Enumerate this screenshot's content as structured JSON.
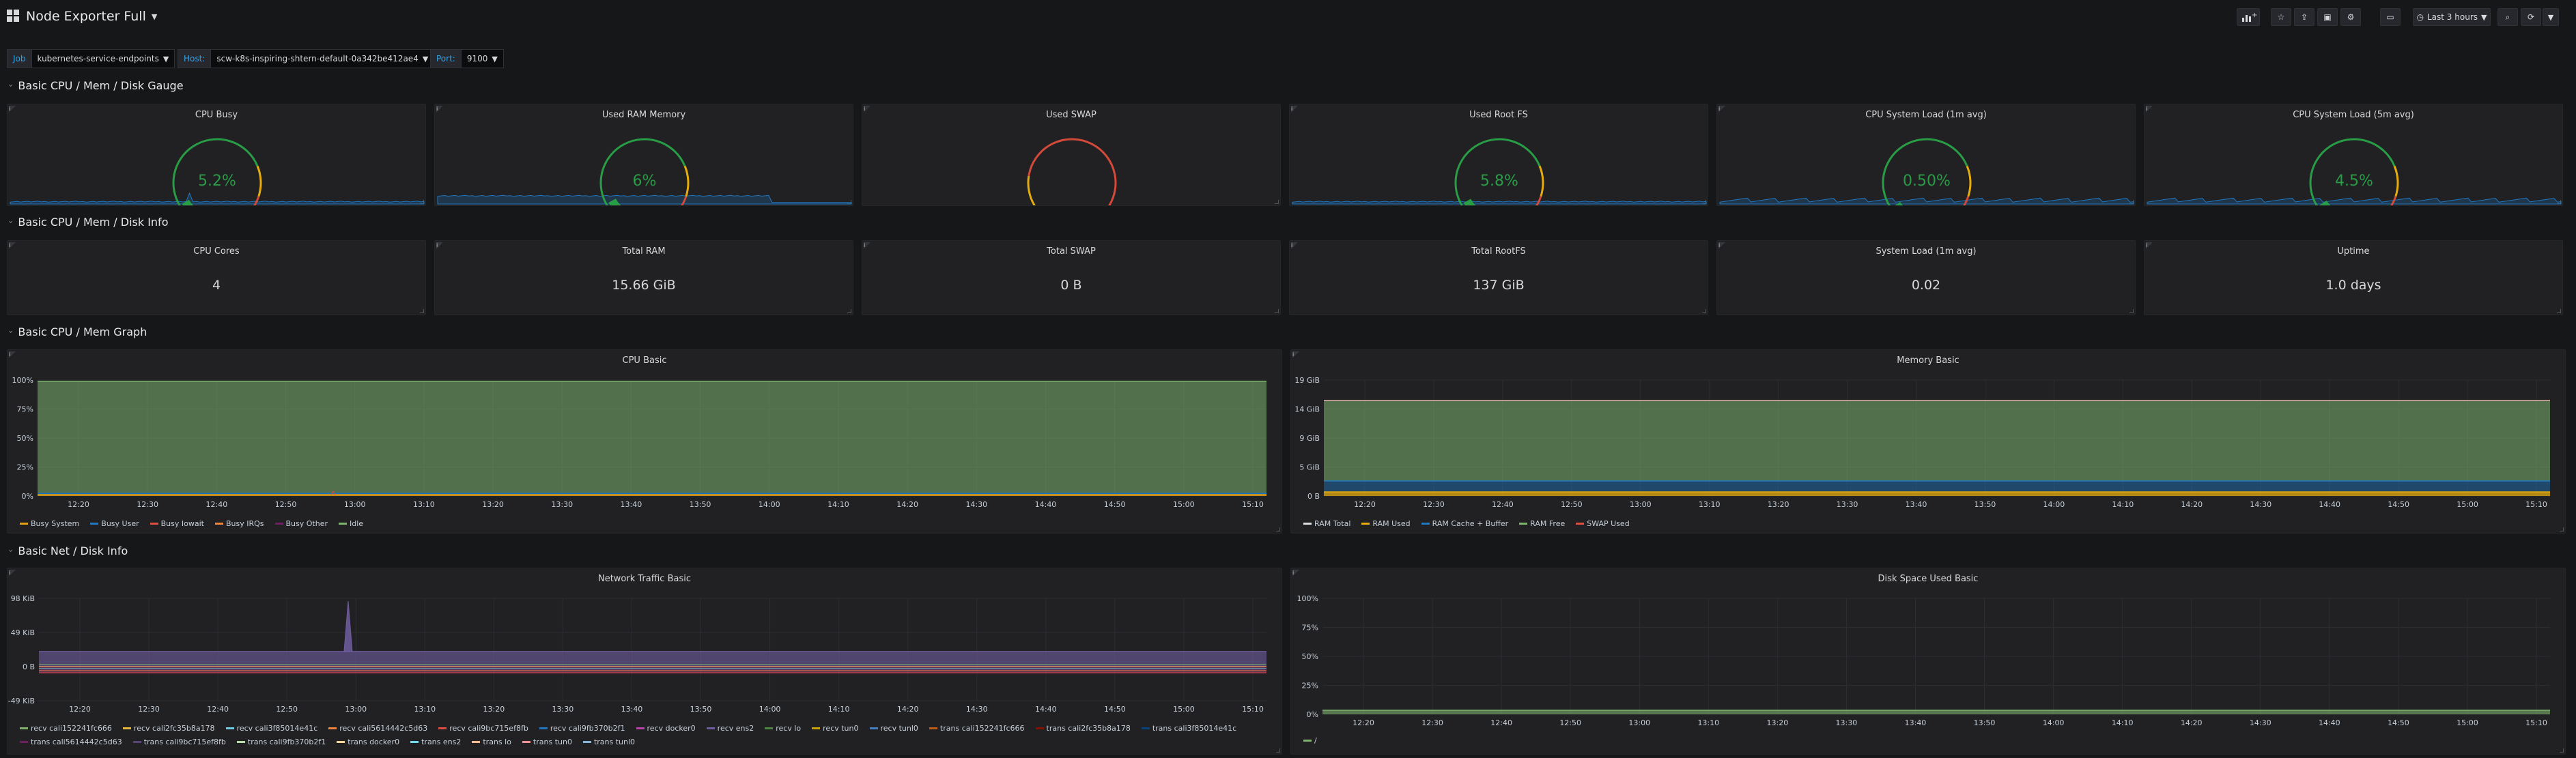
{
  "dashboard": {
    "title": "Node Exporter Full"
  },
  "toolbar": {
    "time_range": "Last 3 hours"
  },
  "colors": {
    "green": "#299c46",
    "yellow": "#e5ac0e",
    "red": "#d44a3a",
    "blue": "#1f78c1",
    "bg": "#161719",
    "panel": "#212124"
  },
  "variables": [
    {
      "label": "Job",
      "value": "kubernetes-service-endpoints"
    },
    {
      "label": "Host:",
      "value": "scw-k8s-inspiring-shtern-default-0a342be412ae4"
    },
    {
      "label": "Port:",
      "value": "9100"
    }
  ],
  "rows": [
    "Basic CPU / Mem / Disk Gauge",
    "Basic CPU / Mem / Disk Info",
    "Basic CPU / Mem Graph",
    "Basic Net / Disk Info"
  ],
  "gauges": [
    {
      "title": "CPU Busy",
      "value": "5.2%",
      "level": 0.052
    },
    {
      "title": "Used RAM Memory",
      "value": "6%",
      "level": 0.06
    },
    {
      "title": "Used SWAP",
      "value": "",
      "level": 0
    },
    {
      "title": "Used Root FS",
      "value": "5.8%",
      "level": 0.058
    },
    {
      "title": "CPU System Load (1m avg)",
      "value": "0.50%",
      "level": 0.005
    },
    {
      "title": "CPU System Load (5m avg)",
      "value": "4.5%",
      "level": 0.045
    }
  ],
  "stats": [
    {
      "title": "CPU Cores",
      "value": "4"
    },
    {
      "title": "Total RAM",
      "value": "15.66 GiB"
    },
    {
      "title": "Total SWAP",
      "value": "0 B"
    },
    {
      "title": "Total RootFS",
      "value": "137 GiB"
    },
    {
      "title": "System Load (1m avg)",
      "value": "0.02"
    },
    {
      "title": "Uptime",
      "value": "1.0 days"
    }
  ],
  "graphs": [
    {
      "title": "CPU Basic",
      "yticks": [
        "100%",
        "75%",
        "50%",
        "25%",
        "0%"
      ],
      "xticks": [
        "12:20",
        "12:30",
        "12:40",
        "12:50",
        "13:00",
        "13:10",
        "13:20",
        "13:30",
        "13:40",
        "13:50",
        "14:00",
        "14:10",
        "14:20",
        "14:30",
        "14:40",
        "14:50",
        "15:00",
        "15:10"
      ],
      "legend": [
        {
          "name": "Busy System",
          "color": "#e5a00e"
        },
        {
          "name": "Busy User",
          "color": "#1f78c1"
        },
        {
          "name": "Busy Iowait",
          "color": "#e24d42"
        },
        {
          "name": "Busy IRQs",
          "color": "#ef843c"
        },
        {
          "name": "Busy Other",
          "color": "#6d1f62"
        },
        {
          "name": "Idle",
          "color": "#7eb26d"
        }
      ]
    },
    {
      "title": "Memory Basic",
      "yticks": [
        "19 GiB",
        "14 GiB",
        "9 GiB",
        "5 GiB",
        "0 B"
      ],
      "xticks": [
        "12:20",
        "12:30",
        "12:40",
        "12:50",
        "13:00",
        "13:10",
        "13:20",
        "13:30",
        "13:40",
        "13:50",
        "14:00",
        "14:10",
        "14:20",
        "14:30",
        "14:40",
        "14:50",
        "15:00",
        "15:10"
      ],
      "legend": [
        {
          "name": "RAM Total",
          "color": "#dddddd"
        },
        {
          "name": "RAM Used",
          "color": "#e5ac0e"
        },
        {
          "name": "RAM Cache + Buffer",
          "color": "#1f78c1"
        },
        {
          "name": "RAM Free",
          "color": "#7eb26d"
        },
        {
          "name": "SWAP Used",
          "color": "#e24d42"
        }
      ]
    },
    {
      "title": "Network Traffic Basic",
      "yticks": [
        "98 KiB",
        "49 KiB",
        "0 B",
        "-49 KiB"
      ],
      "xticks": [
        "12:20",
        "12:30",
        "12:40",
        "12:50",
        "13:00",
        "13:10",
        "13:20",
        "13:30",
        "13:40",
        "13:50",
        "14:00",
        "14:10",
        "14:20",
        "14:30",
        "14:40",
        "14:50",
        "15:00",
        "15:10"
      ],
      "legend": [
        {
          "name": "recv cali152241fc666",
          "color": "#7eb26d"
        },
        {
          "name": "recv cali2fc35b8a178",
          "color": "#eab839"
        },
        {
          "name": "recv cali3f85014e41c",
          "color": "#6ed0e0"
        },
        {
          "name": "recv cali5614442c5d63",
          "color": "#ef843c"
        },
        {
          "name": "recv cali9bc715ef8fb",
          "color": "#e24d42"
        },
        {
          "name": "recv cali9fb370b2f1",
          "color": "#1f78c1"
        },
        {
          "name": "recv docker0",
          "color": "#ba43a9"
        },
        {
          "name": "recv ens2",
          "color": "#705da0"
        },
        {
          "name": "recv lo",
          "color": "#508642"
        },
        {
          "name": "recv tun0",
          "color": "#cca300"
        },
        {
          "name": "recv tunl0",
          "color": "#447ebc"
        },
        {
          "name": "trans cali152241fc666",
          "color": "#c15c17"
        },
        {
          "name": "trans cali2fc35b8a178",
          "color": "#890f02"
        },
        {
          "name": "trans cali3f85014e41c",
          "color": "#0a437c"
        },
        {
          "name": "trans cali5614442c5d63",
          "color": "#6d1f62"
        },
        {
          "name": "trans cali9bc715ef8fb",
          "color": "#584477"
        },
        {
          "name": "trans cali9fb370b2f1",
          "color": "#b7dbab"
        },
        {
          "name": "trans docker0",
          "color": "#f4d598"
        },
        {
          "name": "trans ens2",
          "color": "#70dbed"
        },
        {
          "name": "trans lo",
          "color": "#f9ba8f"
        },
        {
          "name": "trans tun0",
          "color": "#f29191"
        },
        {
          "name": "trans tunl0",
          "color": "#82b5d8"
        }
      ]
    },
    {
      "title": "Disk Space Used Basic",
      "yticks": [
        "100%",
        "75%",
        "50%",
        "25%",
        "0%"
      ],
      "xticks": [
        "12:20",
        "12:30",
        "12:40",
        "12:50",
        "13:00",
        "13:10",
        "13:20",
        "13:30",
        "13:40",
        "13:50",
        "14:00",
        "14:10",
        "14:20",
        "14:30",
        "14:40",
        "14:50",
        "15:00",
        "15:10"
      ],
      "legend": [
        {
          "name": "/",
          "color": "#7eb26d"
        }
      ]
    }
  ]
}
